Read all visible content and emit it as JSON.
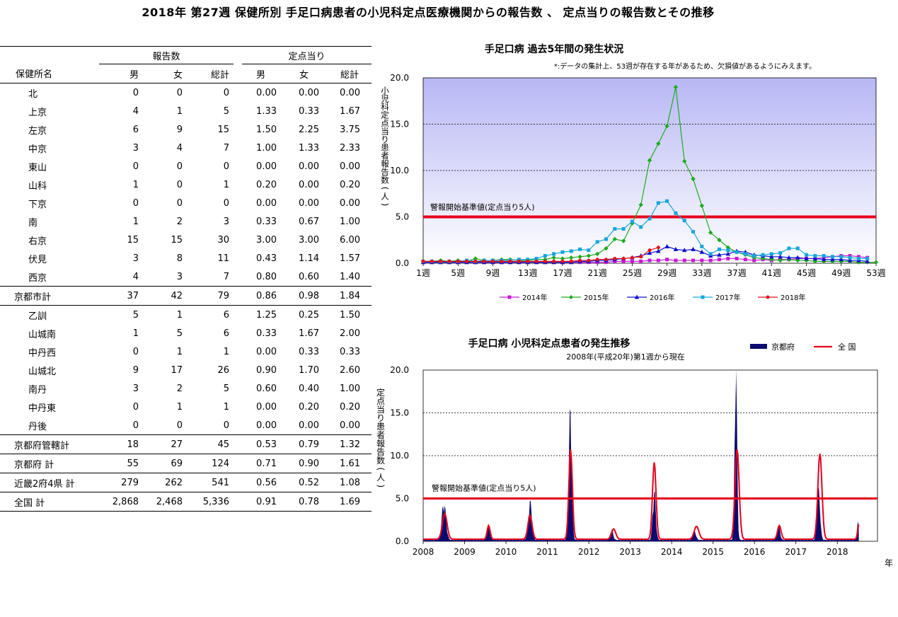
{
  "title": "2018年 第27週 保健所別 手足口病患者の小児科定点医療機関からの報告数 、 定点当りの報告数とその推移",
  "table": {
    "group_headers": [
      "報告数",
      "定点当り"
    ],
    "columns": [
      "保健所名",
      "男",
      "女",
      "総計",
      "男",
      "女",
      "総計"
    ],
    "rows": [
      {
        "name": "北",
        "cells": [
          "0",
          "0",
          "0",
          "0.00",
          "0.00",
          "0.00"
        ],
        "kind": "sub"
      },
      {
        "name": "上京",
        "cells": [
          "4",
          "1",
          "5",
          "1.33",
          "0.33",
          "1.67"
        ],
        "kind": "sub"
      },
      {
        "name": "左京",
        "cells": [
          "6",
          "9",
          "15",
          "1.50",
          "2.25",
          "3.75"
        ],
        "kind": "sub"
      },
      {
        "name": "中京",
        "cells": [
          "3",
          "4",
          "7",
          "1.00",
          "1.33",
          "2.33"
        ],
        "kind": "sub"
      },
      {
        "name": "東山",
        "cells": [
          "0",
          "0",
          "0",
          "0.00",
          "0.00",
          "0.00"
        ],
        "kind": "sub"
      },
      {
        "name": "山科",
        "cells": [
          "1",
          "0",
          "1",
          "0.20",
          "0.00",
          "0.20"
        ],
        "kind": "sub"
      },
      {
        "name": "下京",
        "cells": [
          "0",
          "0",
          "0",
          "0.00",
          "0.00",
          "0.00"
        ],
        "kind": "sub"
      },
      {
        "name": "南",
        "cells": [
          "1",
          "2",
          "3",
          "0.33",
          "0.67",
          "1.00"
        ],
        "kind": "sub"
      },
      {
        "name": "右京",
        "cells": [
          "15",
          "15",
          "30",
          "3.00",
          "3.00",
          "6.00"
        ],
        "kind": "sub"
      },
      {
        "name": "伏見",
        "cells": [
          "3",
          "8",
          "11",
          "0.43",
          "1.14",
          "1.57"
        ],
        "kind": "sub"
      },
      {
        "name": "西京",
        "cells": [
          "4",
          "3",
          "7",
          "0.80",
          "0.60",
          "1.40"
        ],
        "kind": "sub"
      },
      {
        "name": "京都市計",
        "cells": [
          "37",
          "42",
          "79",
          "0.86",
          "0.98",
          "1.84"
        ],
        "kind": "total"
      },
      {
        "name": "乙訓",
        "cells": [
          "5",
          "1",
          "6",
          "1.25",
          "0.25",
          "1.50"
        ],
        "kind": "sub"
      },
      {
        "name": "山城南",
        "cells": [
          "1",
          "5",
          "6",
          "0.33",
          "1.67",
          "2.00"
        ],
        "kind": "sub"
      },
      {
        "name": "中丹西",
        "cells": [
          "0",
          "1",
          "1",
          "0.00",
          "0.33",
          "0.33"
        ],
        "kind": "sub"
      },
      {
        "name": "山城北",
        "cells": [
          "9",
          "17",
          "26",
          "0.90",
          "1.70",
          "2.60"
        ],
        "kind": "sub"
      },
      {
        "name": "南丹",
        "cells": [
          "3",
          "2",
          "5",
          "0.60",
          "0.40",
          "1.00"
        ],
        "kind": "sub"
      },
      {
        "name": "中丹東",
        "cells": [
          "0",
          "1",
          "1",
          "0.00",
          "0.20",
          "0.20"
        ],
        "kind": "sub"
      },
      {
        "name": "丹後",
        "cells": [
          "0",
          "0",
          "0",
          "0.00",
          "0.00",
          "0.00"
        ],
        "kind": "sub"
      },
      {
        "name": "京都府管轄計",
        "cells": [
          "18",
          "27",
          "45",
          "0.53",
          "0.79",
          "1.32"
        ],
        "kind": "total"
      },
      {
        "name": "京都府  計",
        "cells": [
          "55",
          "69",
          "124",
          "0.71",
          "0.90",
          "1.61"
        ],
        "kind": "total"
      },
      {
        "name": "近畿2府4県  計",
        "cells": [
          "279",
          "262",
          "541",
          "0.56",
          "0.52",
          "1.08"
        ],
        "kind": "total"
      },
      {
        "name": "全国  計",
        "cells": [
          "2,868",
          "2,468",
          "5,336",
          "0.91",
          "0.78",
          "1.69"
        ],
        "kind": "total"
      }
    ]
  },
  "chart_data": [
    {
      "type": "line",
      "title": "手足口病 過去5年間の発生状況",
      "subtitle": "*:データの集計上、53週が存在する年があるため、欠損値があるようにみえます。",
      "ylabel": "小児科定点当り患者報告数(人)",
      "ylim": [
        0,
        20
      ],
      "yticks": [
        "0.0",
        "5.0",
        "10.0",
        "15.0",
        "20.0"
      ],
      "xlim": [
        1,
        53
      ],
      "xticks": [
        "1週",
        "5週",
        "9週",
        "13週",
        "17週",
        "21週",
        "25週",
        "29週",
        "33週",
        "37週",
        "41週",
        "45週",
        "49週",
        "53週"
      ],
      "grid": "dotted",
      "threshold": {
        "value": 5,
        "label": "警報開始基準値(定点当り5人)",
        "color": "#e8001c"
      },
      "legend_position": "bottom",
      "series": [
        {
          "name": "2014年",
          "color": "#c71ad2",
          "marker": "square",
          "values": [
            0.1,
            0.1,
            0.1,
            0.1,
            0.1,
            0.1,
            0.1,
            0.1,
            0.1,
            0.1,
            0.1,
            0.1,
            0.1,
            0.1,
            0.1,
            0.1,
            0.1,
            0.1,
            0.1,
            0.1,
            0.1,
            0.1,
            0.2,
            0.2,
            0.2,
            0.2,
            0.3,
            0.3,
            0.4,
            0.3,
            0.3,
            0.3,
            0.3,
            0.3,
            0.4,
            0.5,
            0.5,
            0.4,
            0.3,
            0.4,
            0.3,
            0.4,
            0.4,
            0.5,
            0.5,
            0.5,
            0.6,
            0.7,
            0.8,
            0.8,
            0.7,
            0.6
          ]
        },
        {
          "name": "2015年",
          "color": "#1faa1f",
          "marker": "diamond",
          "values": [
            0.2,
            0.2,
            0.3,
            0.2,
            0.3,
            0.2,
            0.5,
            0.3,
            0.3,
            0.4,
            0.4,
            0.3,
            0.3,
            0.4,
            0.4,
            0.6,
            0.5,
            0.6,
            0.7,
            0.8,
            1.0,
            1.6,
            2.6,
            2.4,
            4.3,
            6.3,
            11.1,
            12.9,
            14.8,
            19.0,
            11.0,
            9.1,
            6.2,
            3.3,
            2.5,
            1.7,
            1.2,
            0.9,
            0.6,
            0.5,
            0.4,
            0.3,
            0.4,
            0.3,
            0.3,
            0.2,
            0.2,
            0.2,
            0.2,
            0.2,
            0.1,
            0.1,
            0.1
          ]
        },
        {
          "name": "2016年",
          "color": "#1111c8",
          "marker": "triangle",
          "values": [
            0.1,
            0.1,
            0.1,
            0.1,
            0.1,
            0.1,
            0.1,
            0.1,
            0.1,
            0.1,
            0.1,
            0.1,
            0.1,
            0.1,
            0.1,
            0.1,
            0.1,
            0.1,
            0.2,
            0.2,
            0.3,
            0.3,
            0.4,
            0.5,
            0.6,
            0.8,
            1.1,
            1.3,
            1.8,
            1.5,
            1.4,
            1.5,
            1.2,
            0.8,
            0.9,
            1.0,
            1.3,
            1.2,
            0.9,
            0.8,
            0.7,
            0.7,
            0.6,
            0.6,
            0.5,
            0.5,
            0.4,
            0.4,
            0.4,
            0.3,
            0.3,
            0.2
          ]
        },
        {
          "name": "2017年",
          "color": "#17a6dc",
          "marker": "square",
          "values": [
            0.2,
            0.2,
            0.2,
            0.2,
            0.2,
            0.3,
            0.2,
            0.3,
            0.3,
            0.3,
            0.3,
            0.4,
            0.4,
            0.5,
            0.8,
            1.0,
            1.2,
            1.3,
            1.5,
            1.4,
            2.3,
            2.6,
            3.7,
            3.7,
            4.5,
            3.9,
            4.8,
            6.5,
            6.7,
            5.4,
            4.6,
            3.4,
            1.8,
            1.0,
            1.5,
            1.4,
            1.2,
            1.0,
            0.8,
            0.9,
            1.0,
            1.1,
            1.6,
            1.6,
            0.9,
            0.8,
            0.8,
            0.7,
            0.7,
            0.6,
            0.5,
            0.5
          ]
        },
        {
          "name": "2018年",
          "color": "#e0141e",
          "marker": "circle",
          "values": [
            0.2,
            0.2,
            0.2,
            0.2,
            0.2,
            0.2,
            0.2,
            0.2,
            0.2,
            0.2,
            0.2,
            0.2,
            0.2,
            0.2,
            0.2,
            0.2,
            0.2,
            0.2,
            0.3,
            0.3,
            0.4,
            0.4,
            0.5,
            0.5,
            0.6,
            0.7,
            1.4,
            1.7
          ]
        }
      ]
    },
    {
      "type": "area",
      "title": "手足口病 小児科定点患者の発生推移",
      "subtitle": "2008年(平成20年)第1週から現在",
      "ylabel": "定点当り患者報告数(人)",
      "xlabel": "年",
      "ylim": [
        0,
        20
      ],
      "yticks": [
        "0.0",
        "5.0",
        "10.0",
        "15.0",
        "20.0"
      ],
      "xticks": [
        "2008",
        "2009",
        "2010",
        "2011",
        "2012",
        "2013",
        "2014",
        "2015",
        "2016",
        "2017",
        "2018"
      ],
      "grid": "dotted",
      "threshold": {
        "value": 5,
        "label": "警報開始基準値(定点当り5人)",
        "color": "#e8001c"
      },
      "legend_position": "top-right",
      "series": [
        {
          "name": "京都府",
          "color": "#0a0a6e",
          "style": "area",
          "peaks": [
            [
              2008.5,
              4.0,
              0.07
            ],
            [
              2009.58,
              1.6,
              0.05
            ],
            [
              2010.58,
              4.1,
              0.06
            ],
            [
              2011.55,
              13.5,
              0.05
            ],
            [
              2012.55,
              1.1,
              0.05
            ],
            [
              2013.58,
              5.2,
              0.05
            ],
            [
              2014.55,
              1.0,
              0.05
            ],
            [
              2015.55,
              19.0,
              0.04
            ],
            [
              2016.58,
              1.6,
              0.05
            ],
            [
              2017.55,
              5.3,
              0.05
            ],
            [
              2018.5,
              1.8,
              0.04
            ]
          ]
        },
        {
          "name": "全 国",
          "color": "#e8001c",
          "style": "line",
          "peaks": [
            [
              2008.52,
              3.0,
              0.08
            ],
            [
              2009.58,
              1.6,
              0.05
            ],
            [
              2010.58,
              2.8,
              0.07
            ],
            [
              2011.56,
              10.5,
              0.06
            ],
            [
              2012.6,
              1.2,
              0.07
            ],
            [
              2013.58,
              9.0,
              0.06
            ],
            [
              2014.6,
              1.5,
              0.08
            ],
            [
              2015.58,
              10.5,
              0.07
            ],
            [
              2016.6,
              1.6,
              0.06
            ],
            [
              2017.58,
              10.0,
              0.07
            ],
            [
              2018.52,
              1.7,
              0.04
            ]
          ]
        }
      ]
    }
  ]
}
